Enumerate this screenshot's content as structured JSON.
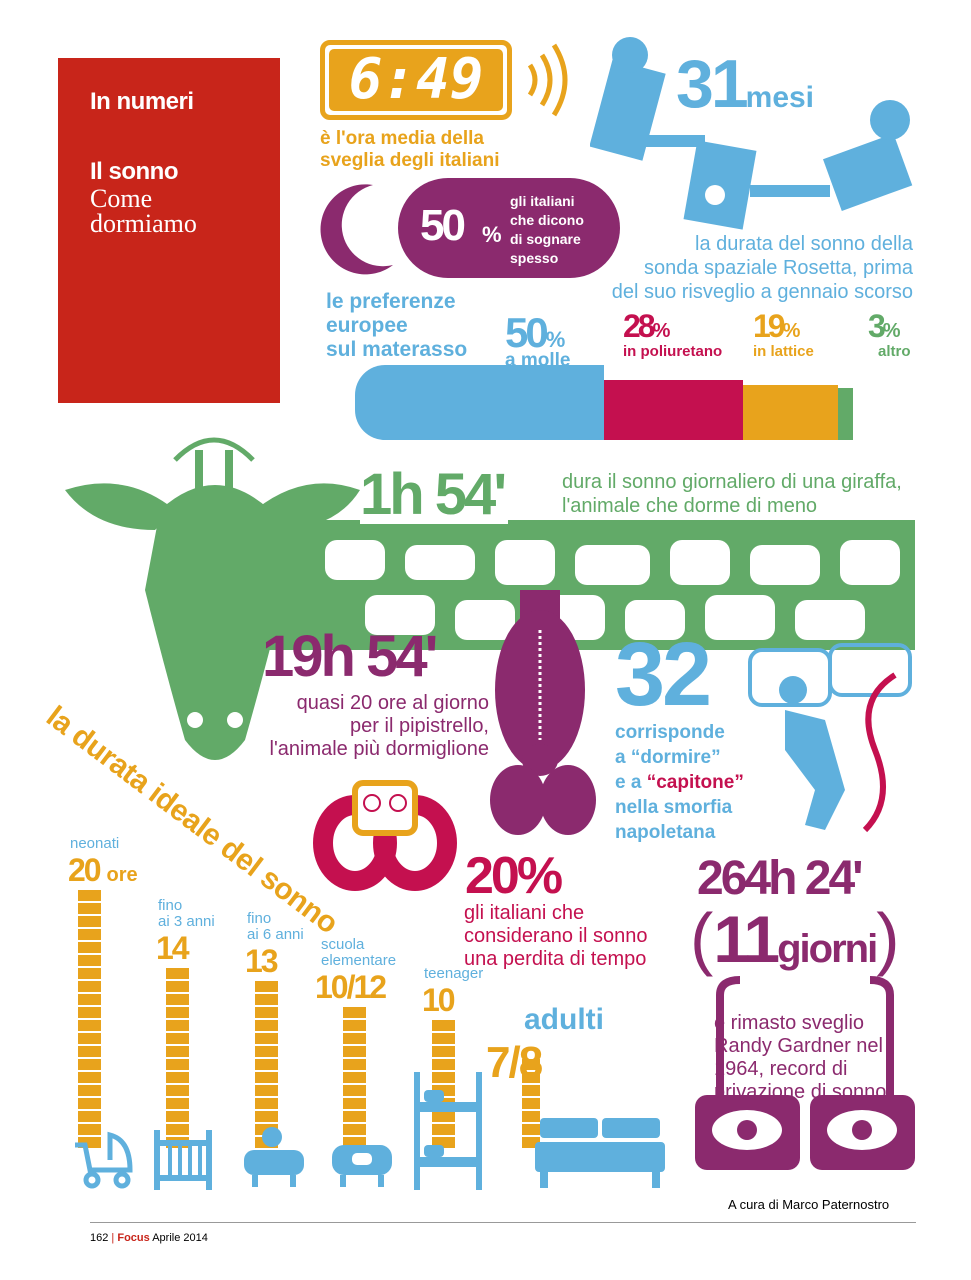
{
  "colors": {
    "red": "#c8251a",
    "orange": "#e8a31c",
    "blue": "#5fb0dd",
    "purple": "#8b2a6e",
    "magenta": "#c4104f",
    "green": "#62aa68"
  },
  "sidebar": {
    "kicker": "In numeri",
    "title": "Il sonno",
    "subtitle_1": "Come",
    "subtitle_2": "dormiamo"
  },
  "clock": {
    "time": "6:49",
    "caption_1": "è l'ora media della",
    "caption_2": "sveglia degli italiani"
  },
  "dreams": {
    "value": "50",
    "unit": "%",
    "text_1": "gli italiani",
    "text_2": "che dicono",
    "text_3": "di sognare",
    "text_4": "spesso"
  },
  "rosetta": {
    "value": "31",
    "unit": "mesi",
    "text_1": "la durata del sonno della",
    "text_2": "sonda spaziale Rosetta, prima",
    "text_3": "del suo risveglio a gennaio scorso"
  },
  "mattress": {
    "title_1": "le preferenze",
    "title_2": "europee",
    "title_3": "sul materasso",
    "items": [
      {
        "value": "50",
        "unit": "%",
        "label": "a molle",
        "pct": 50
      },
      {
        "value": "28",
        "unit": "%",
        "label": "in poliuretano",
        "pct": 28
      },
      {
        "value": "19",
        "unit": "%",
        "label": "in lattice",
        "pct": 19
      },
      {
        "value": "3",
        "unit": "%",
        "label": "altro",
        "pct": 3
      }
    ]
  },
  "giraffe": {
    "value": "1h 54'",
    "text_1": "dura il sonno giornaliero di una giraffa,",
    "text_2": "l'animale che dorme di meno"
  },
  "bat": {
    "value": "19h 54'",
    "text_1": "quasi 20 ore al giorno",
    "text_2": "per il pipistrello,",
    "text_3": "l'animale più dormiglione"
  },
  "smorfia": {
    "value": "32",
    "text_1": "corrisponde",
    "text_2": "a “dormire”",
    "text_3": "e a ",
    "text_3b": "“capitone”",
    "text_4": "nella smorfia",
    "text_5": "napoletana"
  },
  "waste": {
    "value": "20%",
    "text_1": "gli italiani che",
    "text_2": "considerano il sonno",
    "text_3": "una perdita di tempo"
  },
  "gardner": {
    "value": "264h 24'",
    "paren_open": "(",
    "days": "11",
    "days_unit": "giorni",
    "paren_close": ")",
    "text_1": "è rimasto sveglio",
    "text_2": "Randy Gardner nel",
    "text_3": "1964, record di",
    "text_4": "privazione di sonno"
  },
  "ideal": {
    "title": "la durata ideale del sonno",
    "groups": [
      {
        "label_1": "neonati",
        "label_2": "",
        "value": "20",
        "unit": "ore",
        "hours": 20
      },
      {
        "label_1": "fino",
        "label_2": "ai 3 anni",
        "value": "14",
        "hours": 14
      },
      {
        "label_1": "fino",
        "label_2": "ai 6 anni",
        "value": "13",
        "hours": 13
      },
      {
        "label_1": "scuola",
        "label_2": "elementare",
        "value": "10/12",
        "hours": 11
      },
      {
        "label_1": "teenager",
        "label_2": "",
        "value": "10",
        "hours": 10
      },
      {
        "label_1": "adulti",
        "label_2": "",
        "value": "7/8",
        "hours": 7.5
      }
    ]
  },
  "credit": "A cura di Marco Paternostro",
  "footer": {
    "page": "162",
    "sep": "|",
    "brand": "Focus",
    "issue": "Aprile 2014"
  }
}
